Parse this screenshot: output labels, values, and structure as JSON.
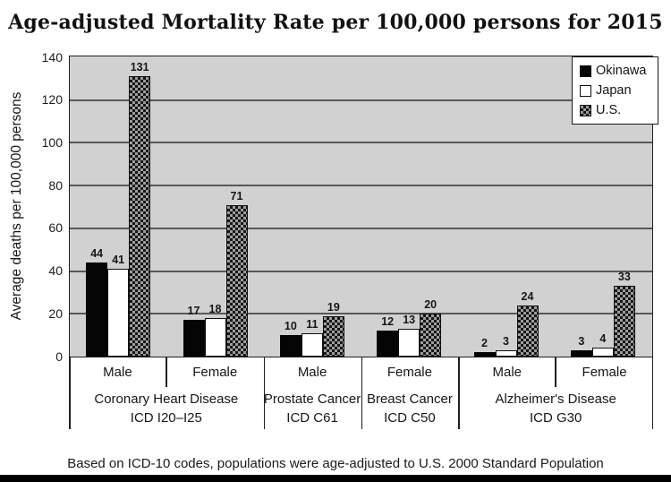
{
  "page": {
    "footer_note": "Based on ICD-10 codes, populations were age-adjusted to U.S. 2000 Standard Population"
  },
  "chart_data": {
    "type": "bar",
    "title": "Age-adjusted Mortality Rate per 100,000 persons for 2015",
    "xlabel": "",
    "ylabel": "Average deaths per 100,000 persons",
    "ylim": [
      0,
      140
    ],
    "ytick_interval": 20,
    "yticks": [
      0,
      20,
      40,
      60,
      80,
      100,
      120,
      140
    ],
    "grid": true,
    "plot_background": "#d1d1d1",
    "legend_position": "top-right",
    "bar_value_labels_shown": true,
    "categories": [
      "Male",
      "Female",
      "Male",
      "Female",
      "Male",
      "Female"
    ],
    "category_groups": [
      {
        "label": "Coronary Heart Disease",
        "code": "ICD I20–I25",
        "span": 2
      },
      {
        "label": "Prostate Cancer",
        "code": "ICD C61",
        "span": 1
      },
      {
        "label": "Breast Cancer",
        "code": "ICD C50",
        "span": 1
      },
      {
        "label": "Alzheimer's Disease",
        "code": "ICD G30",
        "span": 2
      }
    ],
    "series": [
      {
        "name": "Okinawa",
        "fill": "solid-black",
        "color": "#000000",
        "values": [
          44,
          17,
          10,
          12,
          2,
          3
        ]
      },
      {
        "name": "Japan",
        "fill": "white-outline",
        "color": "#ffffff",
        "values": [
          41,
          18,
          11,
          13,
          3,
          4
        ]
      },
      {
        "name": "U.S.",
        "fill": "checker-pattern",
        "color": "#8a8a8a",
        "values": [
          131,
          71,
          19,
          20,
          24,
          33
        ]
      }
    ]
  },
  "colors": {
    "gridline": "#58585a",
    "plot_border": "#1f1f1f",
    "bottom_bar": "#000000"
  }
}
